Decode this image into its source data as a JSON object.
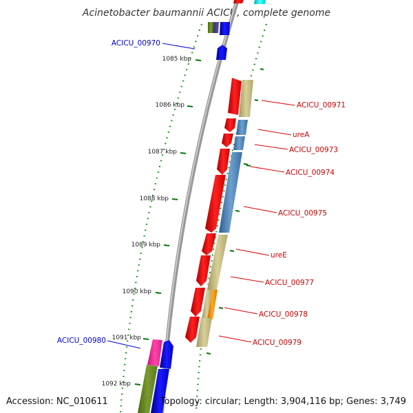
{
  "title": "Acinetobacter baumannii ACICU, complete genome",
  "footer": {
    "accession": "Accession: NC_010611",
    "summary": "Topology: circular; Length: 3,904,116 bp; Genes: 3,749"
  },
  "ticks": [
    "1085 kbp",
    "1086 kbp",
    "1087 kbp",
    "1088 kbp",
    "1089 kbp",
    "1090 kbp",
    "1091 kbp",
    "1092 kbp"
  ],
  "labels_right": [
    "ACICU_00971",
    "ureA",
    "ACICU_00973",
    "ACICU_00974",
    "ACICU_00975",
    "ureE",
    "ACICU_00977",
    "ACICU_00978",
    "ACICU_00979"
  ],
  "labels_left": [
    "ACICU_00970",
    "ACICU_00980"
  ],
  "colors": {
    "forward_cds": "#ff0000",
    "reverse_cds": "#0000ff",
    "olive_track": "#c8c080",
    "steel_track": "#4682b4",
    "backbone": "#999999",
    "tick": "#007700"
  }
}
